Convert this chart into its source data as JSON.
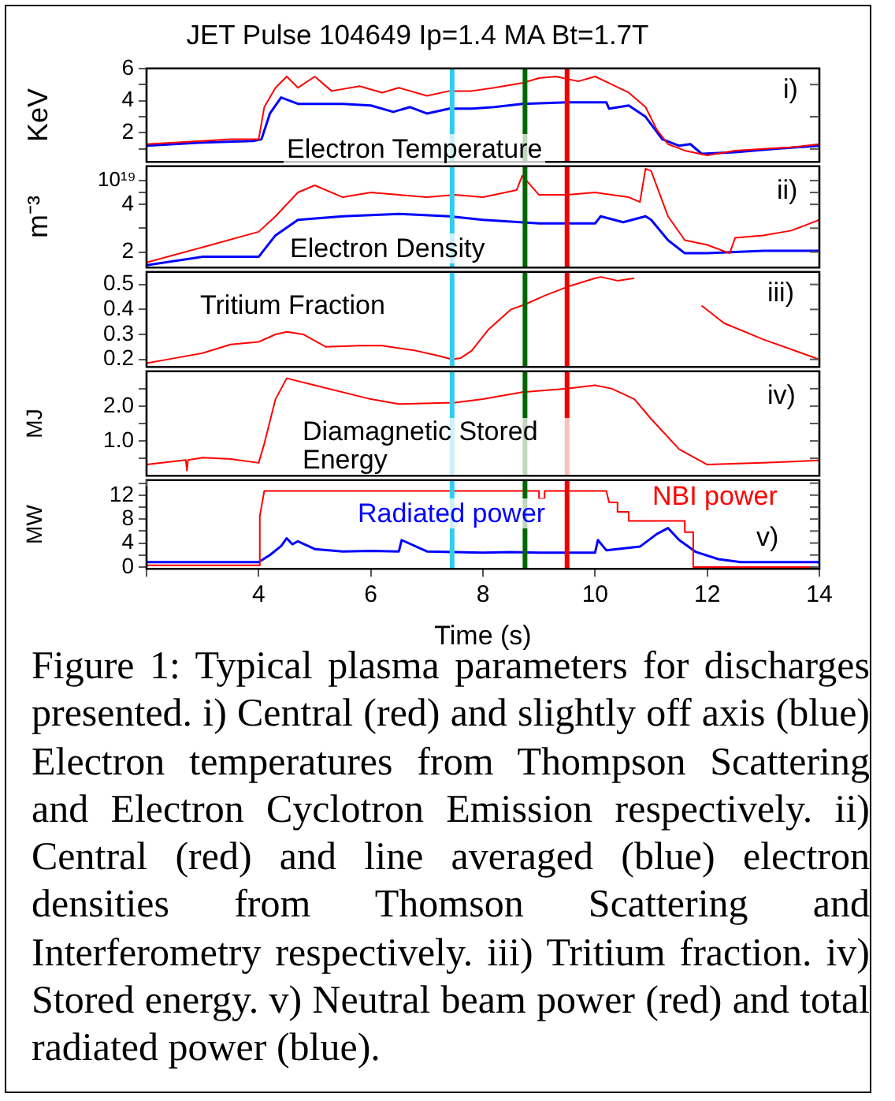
{
  "chart_data": [
    {
      "type": "line",
      "title": "JET Pulse 104649    Ip=1.4 MA Bt=1.7T",
      "ylabel": "KeV",
      "xlim": [
        2,
        14
      ],
      "ylim": [
        0.2,
        6
      ],
      "yticks": [
        {
          "value": 1,
          "label": null
        },
        2,
        {
          "value": 3,
          "label": null
        },
        4,
        {
          "value": 5,
          "label": null
        },
        6
      ],
      "tick_labels": "y",
      "legend": false,
      "grid": false,
      "annotations": [
        "i)",
        "Electron Temperature"
      ],
      "ref_lines": [
        {
          "axis": "x",
          "value": 7.45,
          "color": "#33ccee"
        },
        {
          "axis": "x",
          "value": 8.75,
          "color": "#006600"
        },
        {
          "axis": "x",
          "value": 9.5,
          "color": "#ee0000"
        }
      ],
      "series": [
        {
          "color": "#ff0000",
          "x": [
            2,
            3,
            3.5,
            4,
            4.1,
            4.3,
            4.5,
            4.7,
            5,
            5.3,
            5.8,
            6.2,
            6.5,
            7,
            7.4,
            7.8,
            8.2,
            8.7,
            9,
            9.3,
            9.7,
            10,
            10.3,
            10.6,
            10.9,
            11.1,
            11.3,
            11.6,
            12,
            12.5,
            13,
            13.5,
            14
          ],
          "values": [
            1.3,
            1.5,
            1.6,
            1.6,
            3.6,
            4.8,
            5.5,
            4.8,
            5.5,
            4.6,
            4.9,
            4.5,
            4.8,
            4.3,
            4.6,
            4.6,
            4.8,
            5.1,
            5.4,
            5.5,
            5.2,
            5.5,
            5,
            4.5,
            3.6,
            2.2,
            1.3,
            0.9,
            0.6,
            0.9,
            1,
            1.1,
            1.3
          ]
        },
        {
          "color": "#0000ff",
          "x": [
            2,
            3,
            3.9,
            4.05,
            4.2,
            4.4,
            4.7,
            5.5,
            6,
            6.4,
            6.7,
            7,
            7.4,
            7.8,
            8.2,
            8.7,
            9.5,
            10.2,
            10.25,
            10.6,
            10.9,
            11.2,
            11.5,
            11.7,
            11.9,
            12.5,
            13.2,
            14
          ],
          "values": [
            1.2,
            1.4,
            1.5,
            1.6,
            3.2,
            4.2,
            3.8,
            3.8,
            3.7,
            3.3,
            3.6,
            3.2,
            3.5,
            3.5,
            3.6,
            3.8,
            3.9,
            3.9,
            3.5,
            3.7,
            3,
            1.6,
            1.2,
            1.3,
            0.7,
            0.8,
            1,
            1.2
          ]
        }
      ]
    },
    {
      "type": "line",
      "ylabel": "m⁻³",
      "xlim": [
        2,
        14
      ],
      "ylim": [
        1.35,
        5.6
      ],
      "yticks": [
        2,
        {
          "value": 3,
          "label": null
        },
        4,
        {
          "value": 4.5,
          "label": null
        },
        {
          "value": 5,
          "label": null
        }
      ],
      "tick_labels": "y",
      "legend": false,
      "grid": false,
      "annotations": [
        "ii)",
        "Electron Density",
        "10¹⁹"
      ],
      "ref_lines": [
        {
          "axis": "x",
          "value": 7.45,
          "color": "#33ccee"
        },
        {
          "axis": "x",
          "value": 8.75,
          "color": "#006600"
        },
        {
          "axis": "x",
          "value": 9.5,
          "color": "#ee0000"
        }
      ],
      "series": [
        {
          "color": "#ff0000",
          "x": [
            2,
            3,
            4,
            4.3,
            4.7,
            5,
            5.5,
            6,
            6.5,
            7,
            7.5,
            8,
            8.6,
            8.7,
            9,
            9.5,
            10,
            10.6,
            10.8,
            10.9,
            11,
            11.3,
            11.6,
            12,
            12.4,
            12.5,
            13,
            13.5,
            14
          ],
          "values": [
            1.56,
            2.2,
            2.85,
            3.5,
            4.5,
            4.8,
            4.3,
            4.5,
            4.4,
            4.3,
            4.4,
            4.3,
            4.6,
            5.2,
            4.4,
            4.4,
            4.5,
            4.3,
            4.1,
            5.5,
            5.4,
            3.5,
            2.5,
            2.3,
            1.95,
            2.6,
            2.7,
            2.9,
            3.35
          ]
        },
        {
          "color": "#0000ff",
          "x": [
            2,
            3,
            4,
            4.3,
            4.7,
            5.5,
            6.5,
            7.4,
            8,
            9,
            10,
            10.1,
            10.5,
            10.9,
            11,
            11.3,
            11.6,
            12,
            13,
            14
          ],
          "values": [
            1.45,
            1.8,
            1.8,
            2.7,
            3.35,
            3.5,
            3.6,
            3.5,
            3.35,
            3.2,
            3.2,
            3.5,
            3.25,
            3.5,
            3.35,
            2.5,
            1.95,
            1.95,
            2.05,
            2.05
          ]
        }
      ]
    },
    {
      "type": "line",
      "xlim": [
        2,
        14
      ],
      "ylim": [
        0.17,
        0.55
      ],
      "yticks": [
        0.2,
        0.3,
        0.4,
        0.5
      ],
      "tick_labels": "y",
      "legend": false,
      "grid": false,
      "annotations": [
        "iii)",
        "Tritium Fraction"
      ],
      "ref_lines": [
        {
          "axis": "x",
          "value": 7.45,
          "color": "#33ccee"
        },
        {
          "axis": "x",
          "value": 8.75,
          "color": "#006600"
        },
        {
          "axis": "x",
          "value": 9.5,
          "color": "#ee0000"
        }
      ],
      "series": [
        {
          "color": "#ff0000",
          "x": [
            2,
            2.5,
            3,
            3.5,
            4,
            4.3,
            4.5,
            4.8,
            5.2,
            5.8,
            6.2,
            6.8,
            7.2,
            7.45,
            7.6,
            7.8,
            8.1,
            8.5,
            8.75,
            9.1,
            9.5,
            10,
            10.1,
            10.4,
            10.7,
            11.3,
            11.9,
            12.3,
            13,
            14
          ],
          "values": [
            0.185,
            0.205,
            0.225,
            0.26,
            0.27,
            0.3,
            0.31,
            0.3,
            0.25,
            0.255,
            0.255,
            0.235,
            0.215,
            0.2,
            0.205,
            0.235,
            0.32,
            0.4,
            0.42,
            0.455,
            0.49,
            0.525,
            0.53,
            0.515,
            0.525,
            null,
            0.415,
            0.345,
            0.28,
            0.2
          ]
        }
      ]
    },
    {
      "type": "line",
      "ylabel": "MJ",
      "xlim": [
        2,
        14
      ],
      "ylim": [
        0,
        3
      ],
      "yticks": [
        {
          "value": 0.5,
          "label": null
        },
        {
          "value": 1,
          "label": "1.0"
        },
        {
          "value": 1.5,
          "label": null
        },
        {
          "value": 2,
          "label": "2.0"
        },
        {
          "value": 2.5,
          "label": null
        }
      ],
      "tick_labels": "y",
      "legend": false,
      "grid": false,
      "annotations": [
        "iv)",
        "Diamagnetic Stored Energy"
      ],
      "ref_lines": [
        {
          "axis": "x",
          "value": 7.45,
          "color": "#33ccee"
        },
        {
          "axis": "x",
          "value": 8.75,
          "color": "#006600"
        },
        {
          "axis": "x",
          "value": 9.5,
          "color": "#ee0000"
        }
      ],
      "series": [
        {
          "color": "#ff0000",
          "x": [
            2,
            2.7,
            2.72,
            2.74,
            3,
            3.5,
            4,
            4.1,
            4.3,
            4.5,
            5,
            6,
            6.5,
            7.5,
            8,
            8.7,
            9.5,
            10,
            10.3,
            10.7,
            11,
            11.5,
            12,
            13,
            14
          ],
          "values": [
            0.32,
            0.45,
            0.15,
            0.45,
            0.52,
            0.48,
            0.37,
            0.92,
            2.2,
            2.8,
            2.6,
            2.2,
            2.06,
            2.1,
            2.2,
            2.4,
            2.5,
            2.6,
            2.5,
            2.2,
            1.63,
            0.76,
            0.32,
            0.37,
            0.44
          ]
        }
      ]
    },
    {
      "type": "line",
      "ylabel": "MW",
      "xlabel": "Time (s)",
      "xlim": [
        2,
        14
      ],
      "xticks": [
        {
          "value": 2,
          "label": null
        },
        4,
        6,
        8,
        10,
        12,
        14
      ],
      "ylim": [
        -0.3,
        14.5
      ],
      "yticks": [
        0,
        {
          "value": 2,
          "label": null
        },
        4,
        {
          "value": 6,
          "label": null
        },
        8,
        {
          "value": 10,
          "label": null
        },
        12,
        {
          "value": 14,
          "label": null
        }
      ],
      "legend": false,
      "grid": false,
      "annotations": [
        "v)",
        "Figure 1: Typical plasma parameters for discharges presented. i) Central (red) and slightly off axis (blue) Electron temperatures from Thompson Scattering and Electron Cyclotron Emission respectively. ii) Central (red) and line averaged (blue) electron densities from Thomson Scattering and Interferometry respectively. iii) Tritium fraction. iv) Stored energy. v) Neutral beam power (red) and total radiated power (blue)."
      ],
      "ref_lines": [
        {
          "axis": "x",
          "value": 7.45,
          "color": "#33ccee"
        },
        {
          "axis": "x",
          "value": 8.75,
          "color": "#006600"
        },
        {
          "axis": "x",
          "value": 9.5,
          "color": "#ee0000"
        }
      ],
      "series": [
        {
          "name": "NBI power",
          "color": "#ff0000",
          "x": [
            2,
            4,
            4.02,
            4.1,
            9,
            9,
            9.1,
            9.1,
            10.2,
            10.25,
            10.4,
            10.4,
            10.6,
            10.6,
            11.6,
            11.6,
            11.75,
            11.75,
            14
          ],
          "values": [
            0.3,
            0.3,
            8.5,
            12.7,
            12.7,
            11.4,
            11.4,
            12.7,
            12.7,
            10.8,
            10.8,
            9.2,
            9.2,
            7.7,
            7.7,
            5.8,
            5.8,
            0,
            0
          ]
        },
        {
          "name": "Radiated power",
          "color": "#0000ff",
          "x": [
            2,
            4,
            4.2,
            4.4,
            4.5,
            4.6,
            4.7,
            5,
            5.5,
            6,
            6.5,
            6.55,
            7,
            7.5,
            8,
            8.5,
            9,
            9.5,
            10,
            10.05,
            10.2,
            10.8,
            11.1,
            11.3,
            11.5,
            11.8,
            12.2,
            12.6,
            14
          ],
          "values": [
            0.8,
            0.8,
            2,
            3.5,
            4.8,
            3.8,
            4.3,
            3,
            2.6,
            2.7,
            2.6,
            4.5,
            2.6,
            2.5,
            2.4,
            2.5,
            2.4,
            2.4,
            2.4,
            4.5,
            2.8,
            3.4,
            5.5,
            6.5,
            4.5,
            2.5,
            1.3,
            0.8,
            0.8
          ]
        }
      ]
    }
  ]
}
